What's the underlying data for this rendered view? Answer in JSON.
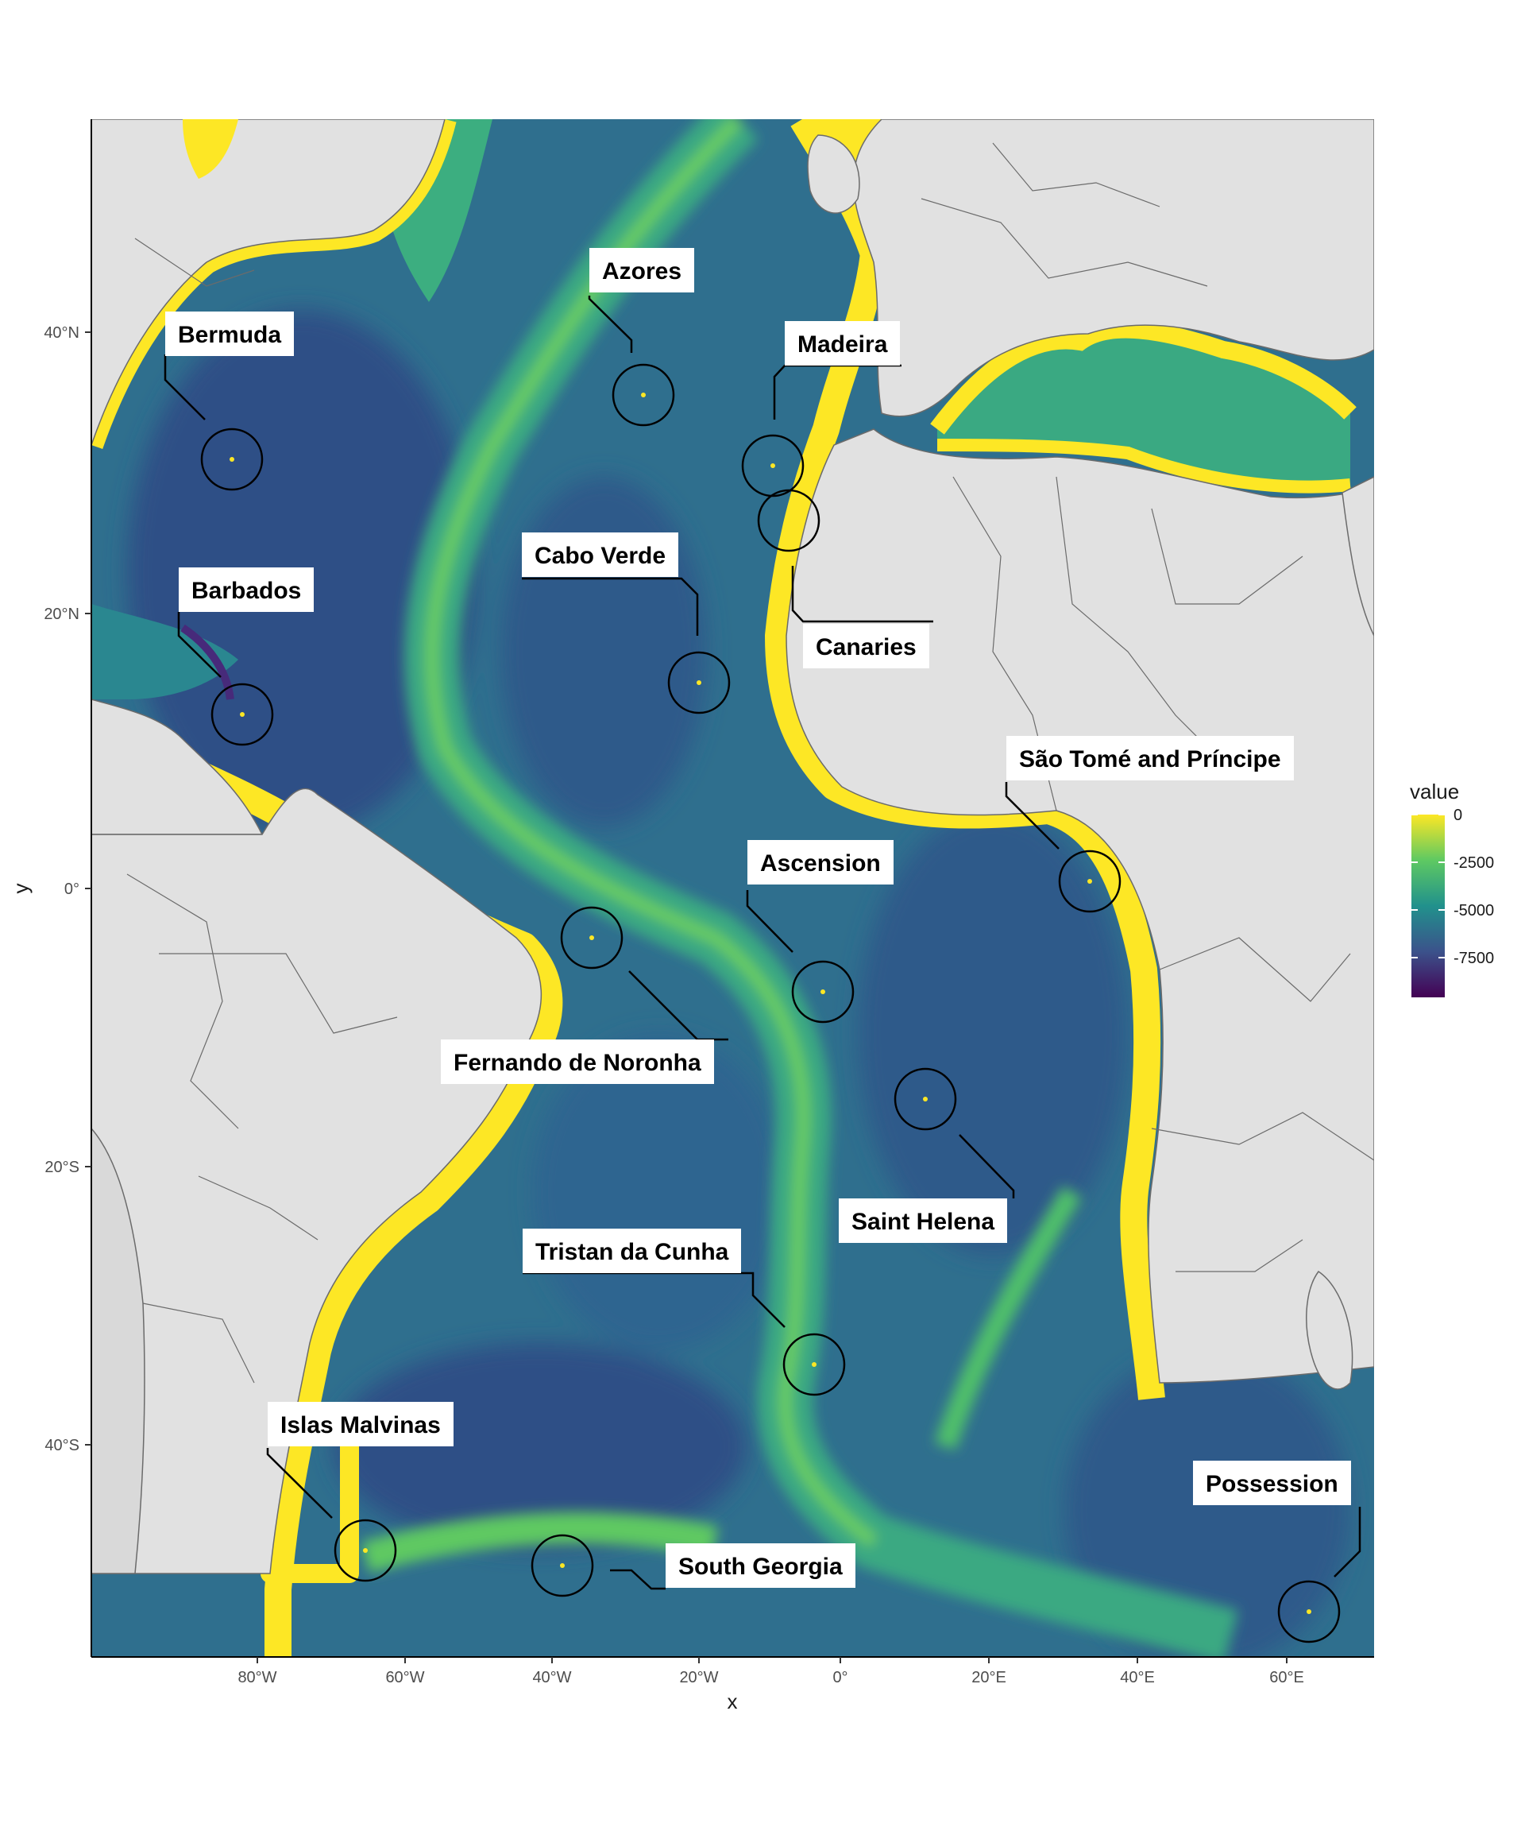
{
  "map": {
    "x_axis_title": "x",
    "y_axis_title": "y",
    "x_ticks": [
      "80°W",
      "60°W",
      "40°W",
      "20°W",
      "0°",
      "20°E",
      "40°E",
      "60°E"
    ],
    "y_ticks": [
      "40°N",
      "20°N",
      "0°",
      "20°S",
      "40°S"
    ],
    "legend": {
      "title": "value",
      "labels": [
        "0",
        "-2500",
        "-5000",
        "-7500"
      ]
    },
    "callouts": [
      {
        "id": "bermuda",
        "label": "Bermuda"
      },
      {
        "id": "azores",
        "label": "Azores"
      },
      {
        "id": "madeira",
        "label": "Madeira"
      },
      {
        "id": "barbados",
        "label": "Barbados"
      },
      {
        "id": "cabo-verde",
        "label": "Cabo Verde"
      },
      {
        "id": "canaries",
        "label": "Canaries"
      },
      {
        "id": "sao-tome",
        "label": "São Tomé and Príncipe"
      },
      {
        "id": "ascension",
        "label": "Ascension"
      },
      {
        "id": "fernando",
        "label": "Fernando de Noronha"
      },
      {
        "id": "saint-helena",
        "label": "Saint Helena"
      },
      {
        "id": "tristan",
        "label": "Tristan da Cunha"
      },
      {
        "id": "malvinas",
        "label": "Islas Malvinas"
      },
      {
        "id": "south-georgia",
        "label": "South Georgia"
      },
      {
        "id": "possession",
        "label": "Possession"
      }
    ],
    "colors": {
      "land": "#e1e1e1",
      "shallow": "#fde725",
      "shelf": "#8fd744",
      "mid": "#35b779",
      "deep": "#21918c",
      "abyss": "#31688e",
      "trench": "#440154",
      "border": "#6b6b6b"
    }
  }
}
